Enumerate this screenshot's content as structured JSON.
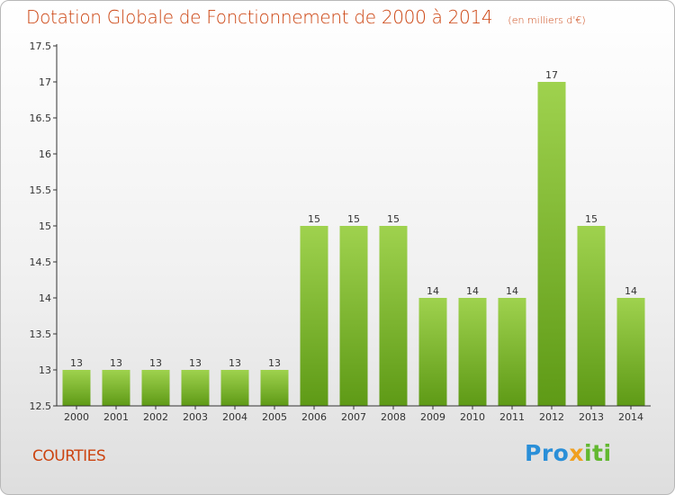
{
  "chart_data": {
    "type": "bar",
    "title": "Dotation Globale de Fonctionnement de 2000 à 2014",
    "unit": "(en milliers d'€)",
    "categories": [
      "2000",
      "2001",
      "2002",
      "2003",
      "2004",
      "2005",
      "2006",
      "2007",
      "2008",
      "2009",
      "2010",
      "2011",
      "2012",
      "2013",
      "2014"
    ],
    "values": [
      13,
      13,
      13,
      13,
      13,
      13,
      15,
      15,
      15,
      14,
      14,
      14,
      17,
      15,
      14
    ],
    "ylim": [
      12.5,
      17.5
    ],
    "yticks": [
      "12.5",
      "13",
      "13.5",
      "14",
      "14.5",
      "15",
      "15.5",
      "16",
      "16.5",
      "17",
      "17.5"
    ],
    "xlabel": "",
    "ylabel": "",
    "grid": false,
    "colors": {
      "bar_top": "#9fd24e",
      "bar_bottom": "#5e9a16",
      "axis": "#333333"
    }
  },
  "commune": "COURTIES",
  "logo": {
    "part1": "Pro",
    "part2": "x",
    "part3": "iti"
  }
}
